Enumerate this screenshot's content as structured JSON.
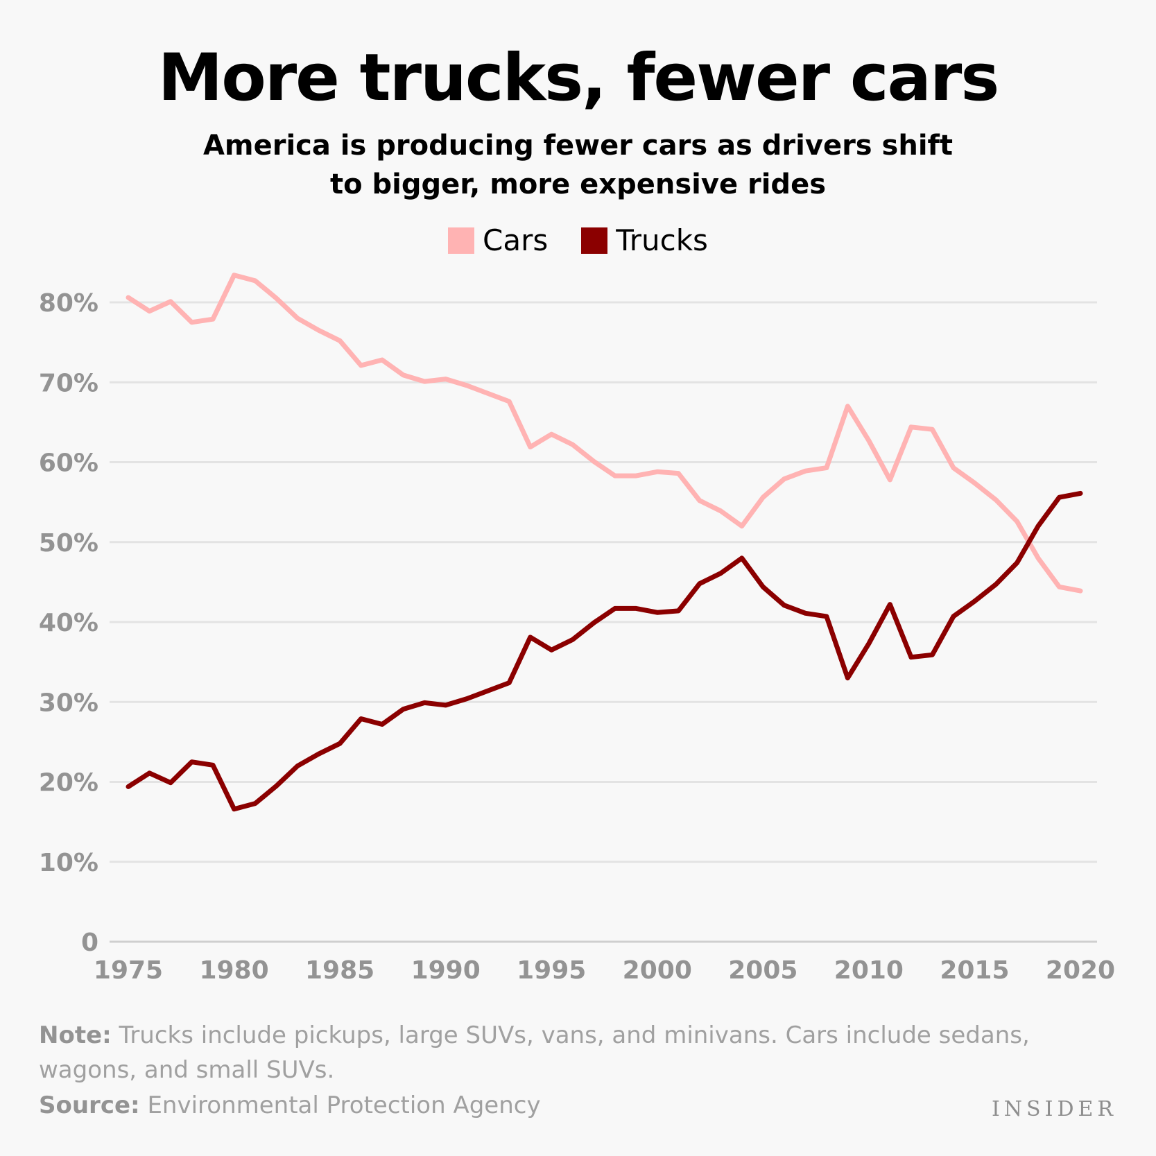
{
  "title": "More trucks, fewer cars",
  "subtitle_line1": "America is producing fewer cars as drivers shift",
  "subtitle_line2": "to bigger, more expensive rides",
  "note_label": "Note:",
  "note_text": " Trucks include pickups, large SUVs, vans, and minivans. Cars include sedans, wagons, and small SUVs.",
  "source_label": "Source:",
  "source_text": " Environmental Protection Agency",
  "brand": "INSIDER",
  "colors": {
    "cars": "#ffb3b3",
    "trucks": "#8b0000",
    "grid": "#e3e3e3",
    "axis": "#cfcfcf"
  },
  "chart_data": {
    "type": "line",
    "title": "More trucks, fewer cars",
    "xlabel": "",
    "ylabel": "",
    "ylim": [
      0,
      80
    ],
    "xlim": [
      1974,
      2021
    ],
    "y_ticks": [
      0,
      10,
      20,
      30,
      40,
      50,
      60,
      70,
      80
    ],
    "y_tick_labels": [
      "0",
      "10%",
      "20%",
      "30%",
      "40%",
      "50%",
      "60%",
      "70%",
      "80%"
    ],
    "x_ticks": [
      1975,
      1980,
      1985,
      1990,
      1995,
      2000,
      2005,
      2010,
      2015,
      2020
    ],
    "x_tick_labels": [
      "1975",
      "1980",
      "1985",
      "1990",
      "1995",
      "2000",
      "2005",
      "2010",
      "2015",
      "2020"
    ],
    "legend": "top-center",
    "x": [
      1975,
      1976,
      1977,
      1978,
      1979,
      1980,
      1981,
      1982,
      1983,
      1984,
      1985,
      1986,
      1987,
      1988,
      1989,
      1990,
      1991,
      1992,
      1993,
      1994,
      1995,
      1996,
      1997,
      1998,
      1999,
      2000,
      2001,
      2002,
      2003,
      2004,
      2005,
      2006,
      2007,
      2008,
      2009,
      2010,
      2011,
      2012,
      2013,
      2014,
      2015,
      2016,
      2017,
      2018,
      2019,
      2020
    ],
    "series": [
      {
        "name": "Cars",
        "values": [
          80.6,
          78.9,
          80.1,
          77.5,
          77.9,
          83.4,
          82.7,
          80.5,
          78.0,
          76.5,
          75.2,
          72.1,
          72.8,
          70.9,
          70.1,
          70.4,
          69.6,
          68.6,
          67.6,
          61.9,
          63.5,
          62.2,
          60.1,
          58.3,
          58.3,
          58.8,
          58.6,
          55.2,
          53.9,
          52.0,
          55.6,
          57.9,
          58.9,
          59.3,
          67.0,
          62.7,
          57.8,
          64.4,
          64.1,
          59.3,
          57.4,
          55.3,
          52.6,
          48.0,
          44.4,
          43.9
        ]
      },
      {
        "name": "Trucks",
        "values": [
          19.4,
          21.1,
          19.9,
          22.5,
          22.1,
          16.6,
          17.3,
          19.5,
          22.0,
          23.5,
          24.8,
          27.9,
          27.2,
          29.1,
          29.9,
          29.6,
          30.4,
          31.4,
          32.4,
          38.1,
          36.5,
          37.8,
          39.9,
          41.7,
          41.7,
          41.2,
          41.4,
          44.8,
          46.1,
          48.0,
          44.4,
          42.1,
          41.1,
          40.7,
          33.0,
          37.3,
          42.2,
          35.6,
          35.9,
          40.7,
          42.6,
          44.7,
          47.4,
          52.0,
          55.6,
          56.1
        ]
      }
    ]
  }
}
